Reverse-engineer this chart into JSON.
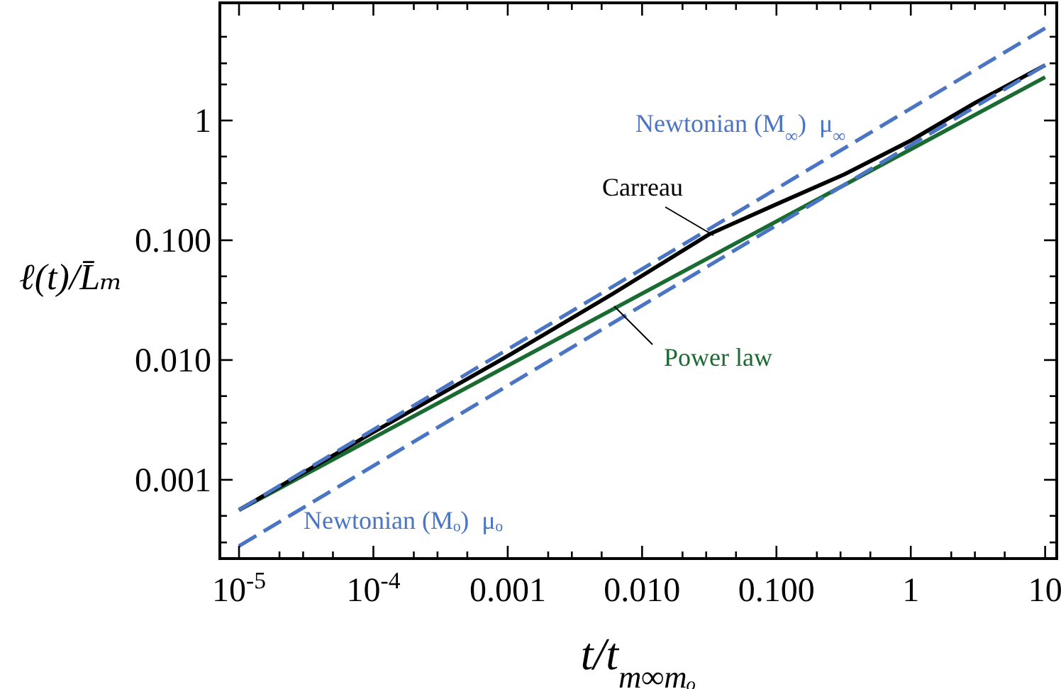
{
  "chart_data": {
    "type": "line",
    "xlabel": "t/t$_{m∞mₒ}$",
    "ylabel": "ℓ(t)/L̄ₘ",
    "log": "xy",
    "grid": false,
    "line_style": "solid",
    "marker": "none",
    "xlim": [
      7.2e-06,
      12.2
    ],
    "ylim": [
      0.00022,
      9.6
    ],
    "xticks": [
      {
        "value": 1e-05,
        "label": "10$^{-5}$"
      },
      {
        "value": 0.0001,
        "label": "10$^{-4}$"
      },
      {
        "value": 0.001,
        "label": "0.001"
      },
      {
        "value": 0.01,
        "label": "0.010"
      },
      {
        "value": 0.1,
        "label": "0.100"
      },
      1,
      10,
      {
        "value": 2e-05,
        "label": null
      },
      {
        "value": 3e-05,
        "label": null
      },
      {
        "value": 5e-05,
        "label": null
      },
      {
        "value": 0.0002,
        "label": null
      },
      {
        "value": 0.0003,
        "label": null
      },
      {
        "value": 0.0005,
        "label": null
      },
      {
        "value": 0.002,
        "label": null
      },
      {
        "value": 0.003,
        "label": null
      },
      {
        "value": 0.005,
        "label": null
      },
      {
        "value": 0.02,
        "label": null
      },
      {
        "value": 0.03,
        "label": null
      },
      {
        "value": 0.05,
        "label": null
      },
      {
        "value": 0.2,
        "label": null
      },
      {
        "value": 0.3,
        "label": null
      },
      {
        "value": 0.5,
        "label": null
      },
      {
        "value": 2,
        "label": null
      },
      {
        "value": 3,
        "label": null
      },
      {
        "value": 5,
        "label": null
      }
    ],
    "yticks": [
      {
        "value": 0.001,
        "label": "0.001"
      },
      {
        "value": 0.01,
        "label": "0.010"
      },
      {
        "value": 0.1,
        "label": "0.100"
      },
      1,
      {
        "value": 0.0003,
        "label": null
      },
      {
        "value": 0.0005,
        "label": null
      },
      {
        "value": 0.002,
        "label": null
      },
      {
        "value": 0.003,
        "label": null
      },
      {
        "value": 0.005,
        "label": null
      },
      {
        "value": 0.02,
        "label": null
      },
      {
        "value": 0.03,
        "label": null
      },
      {
        "value": 0.05,
        "label": null
      },
      {
        "value": 0.2,
        "label": null
      },
      {
        "value": 0.3,
        "label": null
      },
      {
        "value": 0.5,
        "label": null
      },
      {
        "value": 2,
        "label": null
      },
      {
        "value": 3,
        "label": null
      },
      {
        "value": 5,
        "label": null
      }
    ],
    "series": [
      {
        "name": "Newtonian (M$_{∞}$)  μ$_{∞}$",
        "color": "#4a74c4",
        "line_style": "dashed",
        "x": [
          1e-05,
          10
        ],
        "values": [
          0.00056,
          5.9
        ]
      },
      {
        "name": "Newtonian (Mₒ)  μₒ",
        "color": "#4a74c4",
        "line_style": "dashed",
        "x": [
          1e-05,
          10
        ],
        "values": [
          0.00028,
          2.9
        ]
      },
      {
        "name": "Power law",
        "color": "#1a6b32",
        "x": [
          1e-05,
          10
        ],
        "values": [
          0.00056,
          2.3
        ]
      },
      {
        "name": "Carreau",
        "color": "#000000",
        "x": [
          1e-05,
          0.0001,
          0.001,
          0.006,
          0.032,
          0.1,
          0.32,
          1,
          3,
          10
        ],
        "values": [
          0.00056,
          0.0025,
          0.0108,
          0.0355,
          0.113,
          0.2,
          0.355,
          0.68,
          1.4,
          2.9
        ]
      }
    ]
  }
}
